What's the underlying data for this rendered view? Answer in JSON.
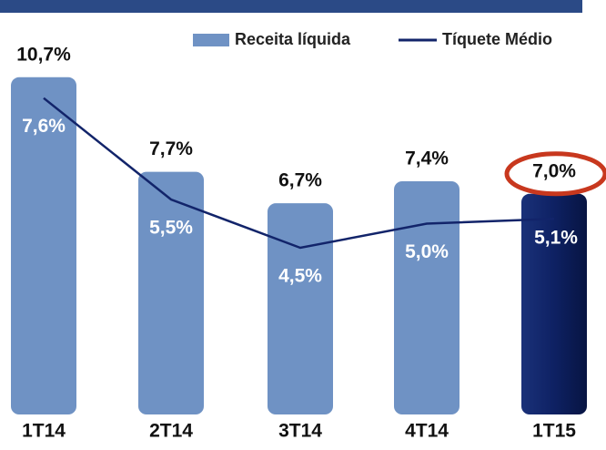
{
  "chart_data": {
    "type": "bar",
    "categories": [
      "1T14",
      "2T14",
      "3T14",
      "4T14",
      "1T15"
    ],
    "series": [
      {
        "name": "Receita líquida",
        "type": "bar",
        "color": "#6f92c4",
        "colors": [
          "#6f92c4",
          "#6f92c4",
          "#6f92c4",
          "#6f92c4",
          "#0e2163"
        ],
        "values": [
          10.7,
          7.7,
          6.7,
          7.4,
          7.0
        ],
        "value_labels": [
          "10,7%",
          "7,7%",
          "6,7%",
          "7,4%",
          "7,0%"
        ]
      },
      {
        "name": "Tíquete Médio",
        "type": "line",
        "color": "#12246a",
        "values": [
          7.6,
          5.5,
          4.5,
          5.0,
          5.1
        ],
        "value_labels": [
          "7,6%",
          "5,5%",
          "4,5%",
          "5,0%",
          "5,1%"
        ]
      }
    ],
    "highlight_color": "#c8381e"
  }
}
